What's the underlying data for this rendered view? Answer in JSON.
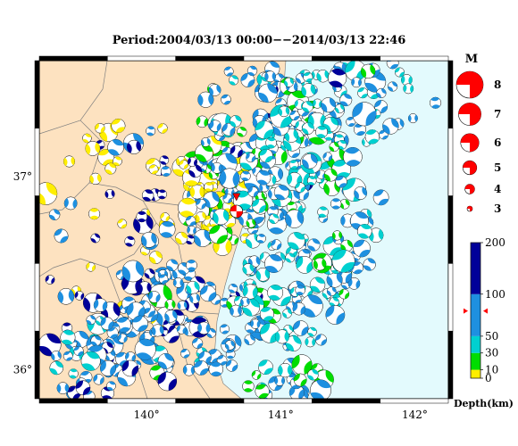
{
  "title": "Period:2004/03/13 00:00−−2014/03/13 22:46",
  "map": {
    "lat_labels": [
      {
        "text": "37°",
        "lat": 37
      },
      {
        "text": "36°",
        "lat": 36
      }
    ],
    "lon_labels": [
      {
        "text": "140°",
        "lon": 140
      },
      {
        "text": "141°",
        "lon": 141
      },
      {
        "text": "142°",
        "lon": 142
      }
    ],
    "lon_range": [
      139.2,
      142.25
    ],
    "lat_range": [
      35.85,
      37.6
    ],
    "land_color": "#fde2c0",
    "sea_color": "#e3fafd",
    "epicenter": {
      "lon": 140.67,
      "lat": 36.82,
      "color": "#ff0000"
    }
  },
  "magnitude_legend": {
    "heading": "M",
    "items": [
      {
        "label": "8",
        "value": 8
      },
      {
        "label": "7",
        "value": 7
      },
      {
        "label": "6",
        "value": 6
      },
      {
        "label": "5",
        "value": 5
      },
      {
        "label": "4",
        "value": 4
      },
      {
        "label": "3",
        "value": 3
      }
    ],
    "color": "#ff0000"
  },
  "depth_scale": {
    "title": "Depth(km)",
    "ticks": [
      {
        "label": "200",
        "value": 200
      },
      {
        "label": "100",
        "value": 100
      },
      {
        "label": "50",
        "value": 50
      },
      {
        "label": "30",
        "value": 30
      },
      {
        "label": "10",
        "value": 10
      },
      {
        "label": "0",
        "value": 0
      }
    ],
    "colors": {
      "0-10": "#ffee00",
      "10-30": "#00dd00",
      "30-50": "#00d0d0",
      "50-100": "#1e90e0",
      "100-200": "#000099"
    },
    "marker_color": "#ff0000"
  }
}
